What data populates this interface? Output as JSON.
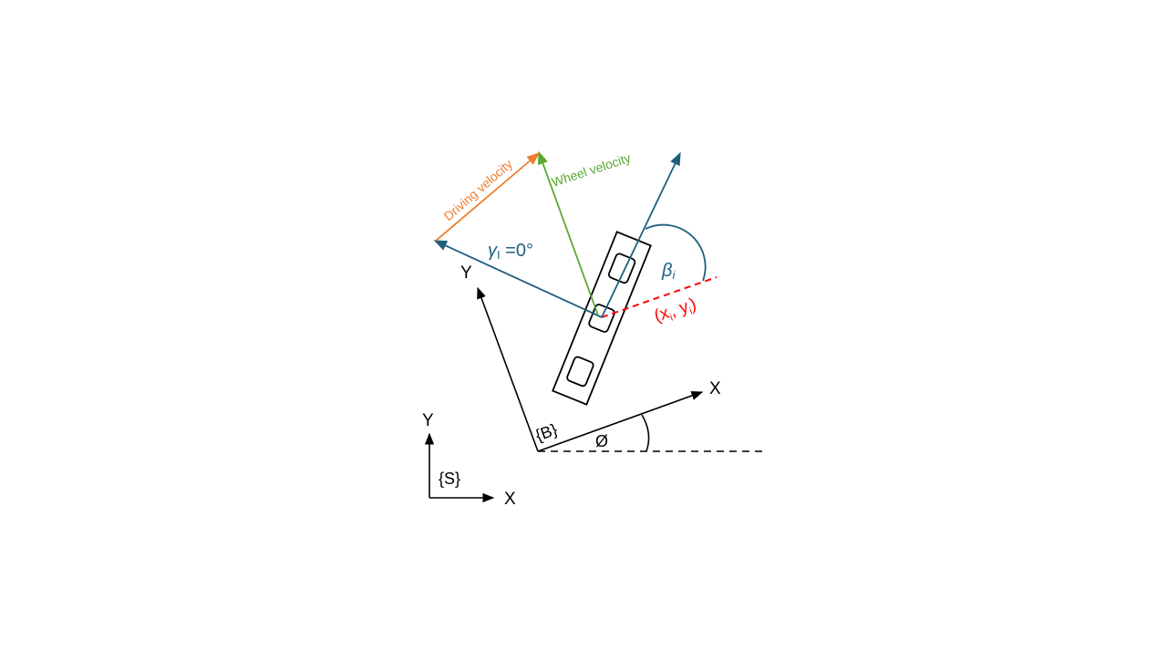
{
  "labels": {
    "s_frame": "{S}",
    "s_x": "X",
    "s_y": "Y",
    "b_frame": "{B}",
    "b_x": "X",
    "b_y": "Y",
    "phi": "Ø",
    "driving_velocity": "Driving velocity",
    "wheel_velocity": "Wheel velocity",
    "gamma_symbol": "γ",
    "gamma_sub": "I",
    "gamma_value": " =0°",
    "beta_symbol": "β",
    "beta_sub": "i",
    "pos_open": "(x",
    "pos_sub1": "i",
    "pos_mid": ", y",
    "pos_sub2": "i",
    "pos_close": ")"
  },
  "colors": {
    "axes": "#000000",
    "driving_velocity": "#ed7d31",
    "wheel_velocity": "#5aa832",
    "blue_vector": "#1f5f7f",
    "position_line": "#ff0000"
  }
}
